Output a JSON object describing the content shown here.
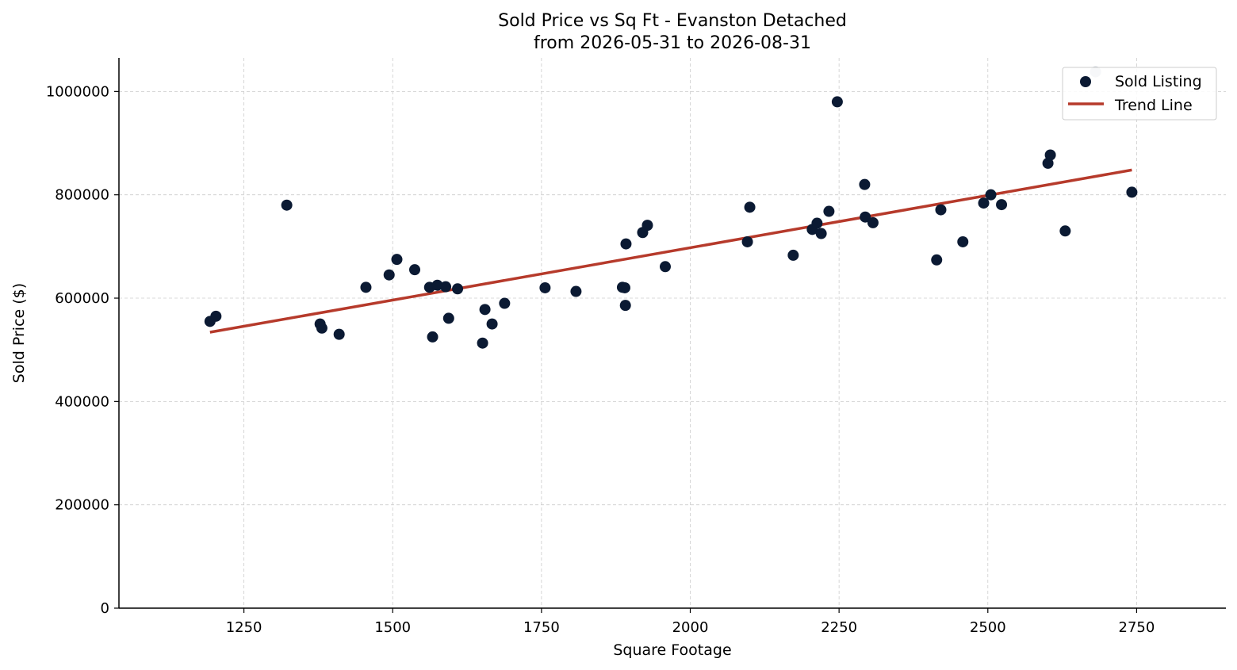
{
  "chart_data": {
    "type": "scatter",
    "title_line1": "Sold Price vs Sq Ft - Evanston Detached",
    "title_line2": "from 2026-05-31 to 2026-08-31",
    "xlabel": "Square Footage",
    "ylabel": "Sold Price ($)",
    "xlim": [
      1040,
      2900
    ],
    "ylim": [
      0,
      1065000
    ],
    "xticks": [
      1250,
      1500,
      1750,
      2000,
      2250,
      2500,
      2750
    ],
    "yticks": [
      0,
      200000,
      400000,
      600000,
      800000,
      1000000
    ],
    "grid": true,
    "legend_position": "top-right",
    "colors": {
      "points": "#0b1a33",
      "trend": "#b63a2b",
      "outlier": "#c4cbd3"
    },
    "series": [
      {
        "name": "Sold Listing",
        "points": [
          [
            1193,
            555000
          ],
          [
            1203,
            565000
          ],
          [
            1322,
            780000
          ],
          [
            1378,
            550000
          ],
          [
            1381,
            542000
          ],
          [
            1410,
            530000
          ],
          [
            1455,
            621000
          ],
          [
            1494,
            645000
          ],
          [
            1507,
            675000
          ],
          [
            1537,
            655000
          ],
          [
            1562,
            621000
          ],
          [
            1567,
            525000
          ],
          [
            1575,
            625000
          ],
          [
            1589,
            622000
          ],
          [
            1594,
            561000
          ],
          [
            1609,
            618000
          ],
          [
            1651,
            513000
          ],
          [
            1655,
            578000
          ],
          [
            1667,
            550000
          ],
          [
            1688,
            590000
          ],
          [
            1756,
            620000
          ],
          [
            1808,
            613000
          ],
          [
            1886,
            621000
          ],
          [
            1890,
            620000
          ],
          [
            1891,
            586000
          ],
          [
            1892,
            705000
          ],
          [
            1920,
            727000
          ],
          [
            1928,
            741000
          ],
          [
            1958,
            661000
          ],
          [
            2096,
            709000
          ],
          [
            2100,
            776000
          ],
          [
            2173,
            683000
          ],
          [
            2205,
            733000
          ],
          [
            2213,
            745000
          ],
          [
            2220,
            725000
          ],
          [
            2233,
            768000
          ],
          [
            2247,
            980000
          ],
          [
            2293,
            820000
          ],
          [
            2294,
            757000
          ],
          [
            2307,
            746000
          ],
          [
            2414,
            674000
          ],
          [
            2421,
            771000
          ],
          [
            2458,
            709000
          ],
          [
            2493,
            784000
          ],
          [
            2505,
            800000
          ],
          [
            2523,
            781000
          ],
          [
            2601,
            861000
          ],
          [
            2605,
            877000
          ],
          [
            2630,
            730000
          ],
          [
            2742,
            805000
          ]
        ]
      },
      {
        "name": "Trend Line",
        "line": [
          [
            1193,
            534000
          ],
          [
            2742,
            848000
          ]
        ]
      }
    ],
    "outliers": [
      [
        2681,
        1038000
      ]
    ]
  }
}
